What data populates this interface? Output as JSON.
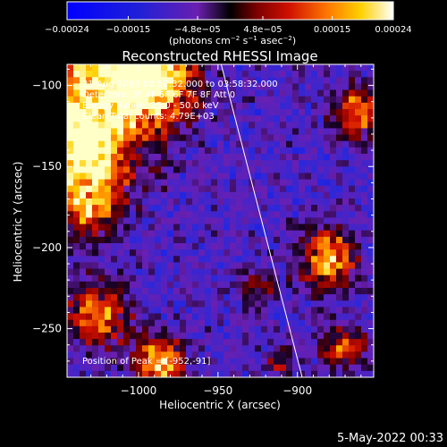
{
  "chart_data": {
    "type": "heatmap",
    "title": "Reconstructed RHESSI Image",
    "xlabel": "Heliocentric X (arcsec)",
    "ylabel": "Heliocentric Y (arcsec)",
    "xlim": [
      -1045,
      -852
    ],
    "ylim": [
      -280,
      -87
    ],
    "x_ticks": [
      -1000,
      -950,
      -900
    ],
    "x_tick_labels": [
      "−1000",
      "−950",
      "−900"
    ],
    "y_ticks": [
      -100,
      -150,
      -200,
      -250
    ],
    "y_tick_labels": [
      "−100",
      "−150",
      "−200",
      "−250"
    ],
    "colorbar": {
      "range": [
        -0.00024,
        0.00024
      ],
      "tick_labels": [
        "−0.00024",
        "−0.00015",
        "−4.8e−05",
        "4.8e−05",
        "0.00015",
        "0.00024"
      ],
      "unit_parts": [
        "(photons cm",
        "−2",
        " s",
        "−1",
        " asec",
        "−2",
        ")"
      ],
      "colormap": [
        "#0000ff",
        "#2020d8",
        "#6a1fb0",
        "#000000",
        "#7a0000",
        "#d01000",
        "#ff7a00",
        "#ffd000",
        "#ffffa0",
        "#ffffff"
      ]
    },
    "annotations": [
      "21-Aug-2003 03:52:32.000 to 03:58:32.000",
      "Detectors: 3F 4F 5F 6F 7F 8F  Att 0",
      "Energy Range: 25.0 - 50.0 keV",
      "Clean      Total counts: 4.79E+03"
    ],
    "peak_label": "Position of Peak = [-952,-91]",
    "peak": [
      -952,
      -91
    ],
    "limb_line": [
      [
        -948,
        -87
      ],
      [
        -897,
        -280
      ]
    ],
    "grid": false
  },
  "footer": {
    "date": "5-May-2022 00:33"
  }
}
